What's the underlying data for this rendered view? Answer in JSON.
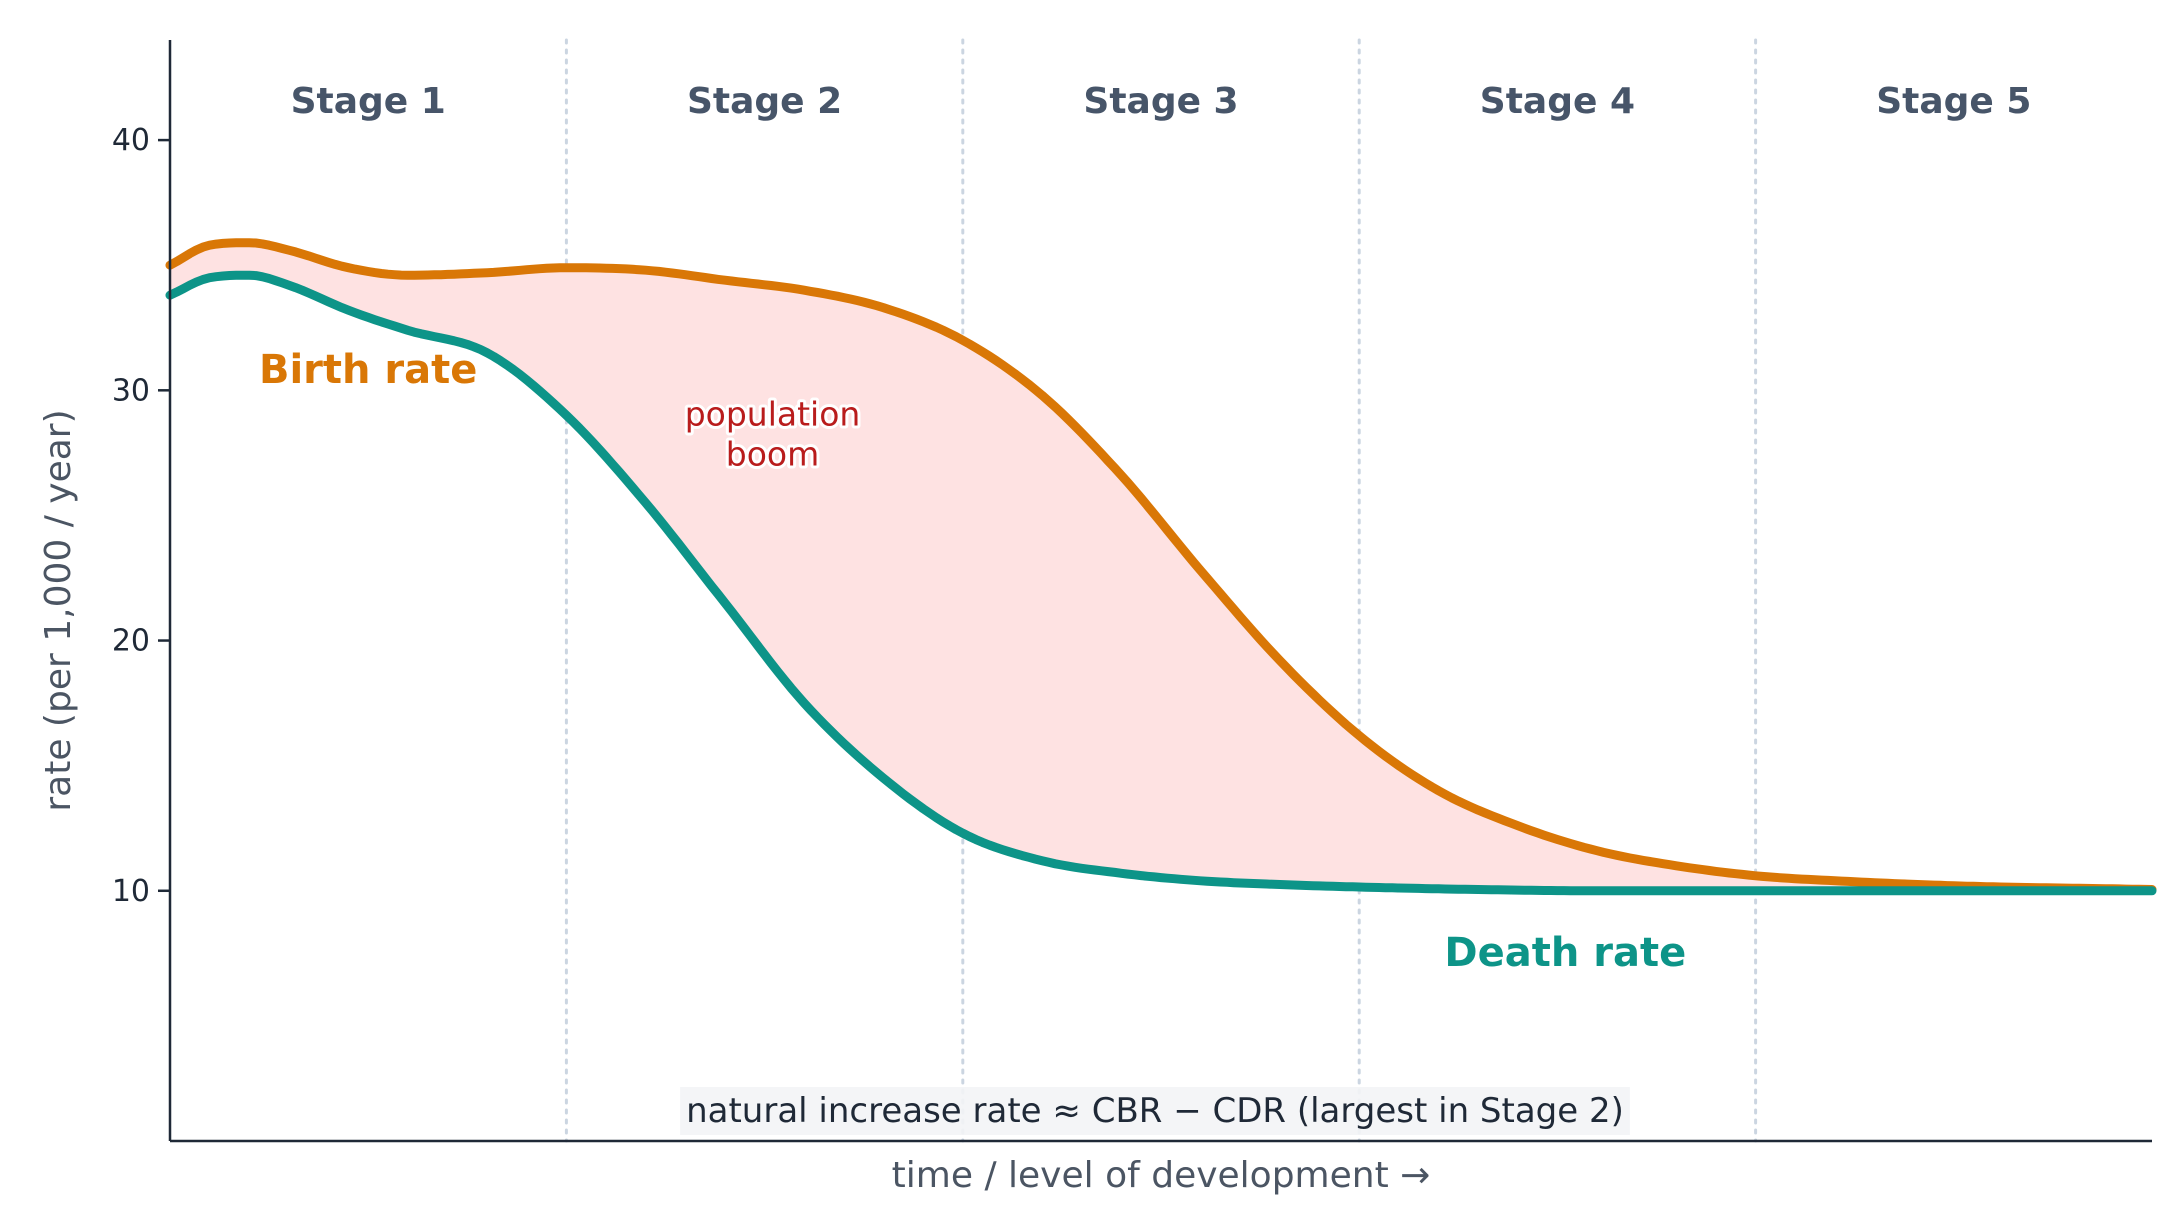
{
  "chart_data": {
    "type": "line",
    "xlabel": "time / level of development →",
    "ylabel": "rate (per 1,000 / year)",
    "ylim": [
      0,
      44
    ],
    "xlim": [
      0,
      5
    ],
    "yticks": [
      10,
      20,
      30,
      40
    ],
    "grid": false,
    "stages": [
      "Stage 1",
      "Stage 2",
      "Stage 3",
      "Stage 4",
      "Stage 5"
    ],
    "stage_boundaries": [
      1,
      2,
      3,
      4
    ],
    "series": [
      {
        "name": "Birth rate",
        "color": "#d97706",
        "x": [
          0,
          0.1,
          0.2,
          0.3,
          0.45,
          0.6,
          0.8,
          1.0,
          1.2,
          1.4,
          1.6,
          1.8,
          2.0,
          2.2,
          2.4,
          2.6,
          2.8,
          3.0,
          3.2,
          3.4,
          3.6,
          3.8,
          4.0,
          4.2,
          4.5,
          5.0
        ],
        "y": [
          35.0,
          35.8,
          35.9,
          35.6,
          34.9,
          34.6,
          34.7,
          34.9,
          34.8,
          34.4,
          34.0,
          33.3,
          32.0,
          29.8,
          26.6,
          22.8,
          19.2,
          16.2,
          14.0,
          12.6,
          11.6,
          11.0,
          10.6,
          10.4,
          10.2,
          10.05
        ]
      },
      {
        "name": "Death rate",
        "color": "#0d9488",
        "x": [
          0,
          0.1,
          0.2,
          0.3,
          0.45,
          0.6,
          0.8,
          1.0,
          1.2,
          1.4,
          1.6,
          1.8,
          2.0,
          2.2,
          2.4,
          2.6,
          2.8,
          3.0,
          3.3,
          3.6,
          4.0,
          4.5,
          5.0
        ],
        "y": [
          33.8,
          34.5,
          34.6,
          34.2,
          33.2,
          32.4,
          31.5,
          29.0,
          25.5,
          21.5,
          17.5,
          14.5,
          12.3,
          11.2,
          10.7,
          10.4,
          10.25,
          10.15,
          10.05,
          10.0,
          10.0,
          10.0,
          10.0
        ]
      }
    ],
    "series_labels": [
      {
        "text": "Birth rate",
        "x": 0.5,
        "y": 30.3,
        "color": "#d97706"
      },
      {
        "text": "Death rate",
        "x": 3.52,
        "y": 7.0,
        "color": "#0d9488"
      }
    ],
    "fill_between": {
      "color": "#fee2e2",
      "label_lines": [
        "population",
        "boom"
      ],
      "x": 1.52,
      "y": 27.8
    },
    "note": "natural increase rate ≈ CBR − CDR  (largest in Stage 2)"
  }
}
